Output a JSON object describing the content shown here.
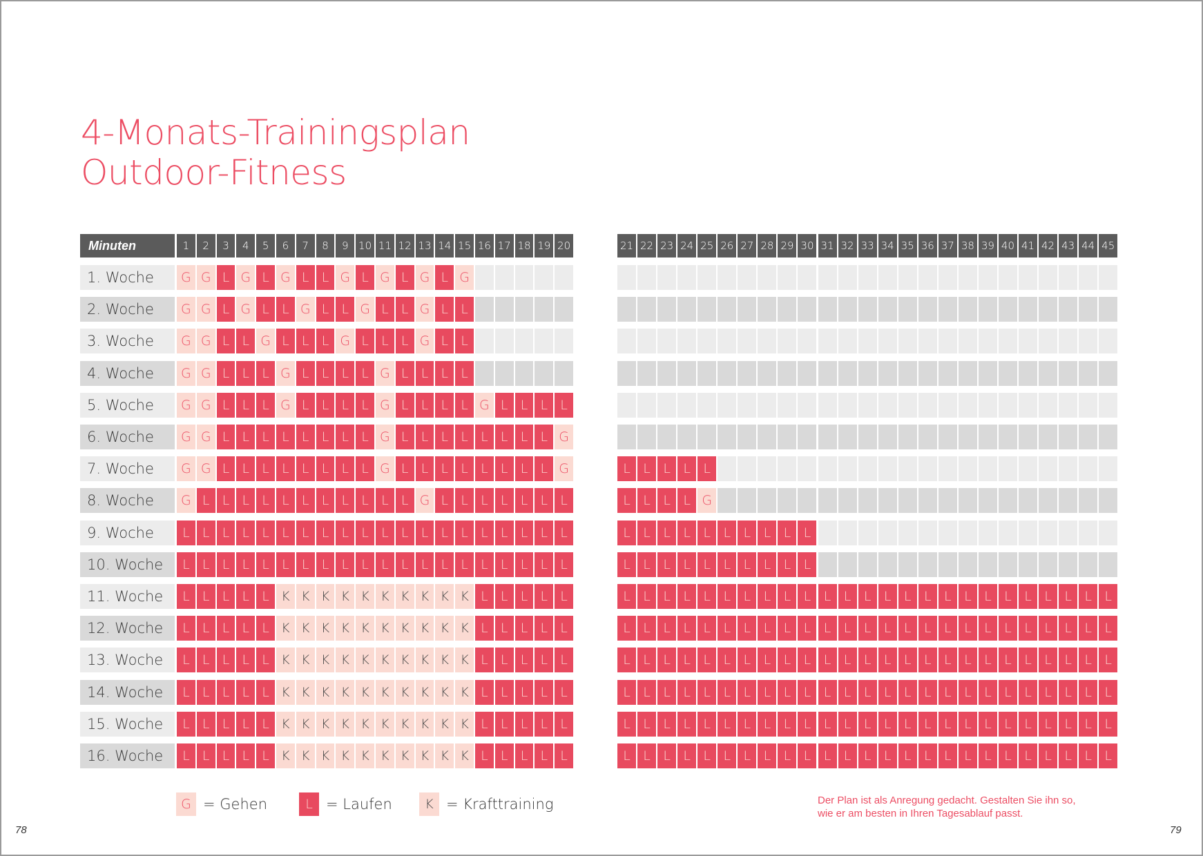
{
  "title": {
    "line1": "4-Monats-Trainingsplan",
    "line2": "Outdoor-Fitness"
  },
  "header_label": "Minuten",
  "minutes_left": [
    "1",
    "2",
    "3",
    "4",
    "5",
    "6",
    "7",
    "8",
    "9",
    "10",
    "11",
    "12",
    "13",
    "14",
    "15",
    "16",
    "17",
    "18",
    "19",
    "20"
  ],
  "minutes_right": [
    "21",
    "22",
    "23",
    "24",
    "25",
    "26",
    "27",
    "28",
    "29",
    "30",
    "31",
    "32",
    "33",
    "34",
    "35",
    "36",
    "37",
    "38",
    "39",
    "40",
    "41",
    "42",
    "43",
    "44",
    "45"
  ],
  "weeks": [
    {
      "label": "1. Woche",
      "left": "GGLGLGLLGLGLGLG-----",
      "right": "-------------------------"
    },
    {
      "label": "2. Woche",
      "left": "GGLGLLGLLGLLGLL-----",
      "right": "-------------------------"
    },
    {
      "label": "3. Woche",
      "left": "GGLLGLLLGLLLGLL-----",
      "right": "-------------------------"
    },
    {
      "label": "4. Woche",
      "left": "GGLLLGLLLLGLLLL-----",
      "right": "-------------------------"
    },
    {
      "label": "5. Woche",
      "left": "GGLLLGLLLLGLLLLGLLLL",
      "right": "-------------------------"
    },
    {
      "label": "6. Woche",
      "left": "GGLLLLLLLLGLLLLLLLLG",
      "right": "-------------------------"
    },
    {
      "label": "7. Woche",
      "left": "GGLLLLLLLLGLLLLLLLLG",
      "right": "LLLLL--------------------"
    },
    {
      "label": "8. Woche",
      "left": "GLLLLLLLLLLLGLLLLLLL",
      "right": "LLLLG--------------------"
    },
    {
      "label": "9. Woche",
      "left": "LLLLLLLLLLLLLLLLLLLL",
      "right": "LLLLLLLLLL---------------"
    },
    {
      "label": "10. Woche",
      "left": "LLLLLLLLLLLLLLLLLLLL",
      "right": "LLLLLLLLLL---------------"
    },
    {
      "label": "11. Woche",
      "left": "LLLLLKKKKKKKKKKLLLLL",
      "right": "LLLLLLLLLLLLLLLLLLLLLLLLL"
    },
    {
      "label": "12. Woche",
      "left": "LLLLLKKKKKKKKKKLLLLL",
      "right": "LLLLLLLLLLLLLLLLLLLLLLLLL"
    },
    {
      "label": "13. Woche",
      "left": "LLLLLKKKKKKKKKKLLLLL",
      "right": "LLLLLLLLLLLLLLLLLLLLLLLLL"
    },
    {
      "label": "14. Woche",
      "left": "LLLLLKKKKKKKKKKLLLLL",
      "right": "LLLLLLLLLLLLLLLLLLLLLLLLL"
    },
    {
      "label": "15. Woche",
      "left": "LLLLLKKKKKKKKKKLLLLL",
      "right": "LLLLLLLLLLLLLLLLLLLLLLLLL"
    },
    {
      "label": "16. Woche",
      "left": "LLLLLKKKKKKKKKKLLLLL",
      "right": "LLLLLLLLLLLLLLLLLLLLLLLLL"
    }
  ],
  "legend": [
    {
      "code": "G",
      "text": "= Gehen"
    },
    {
      "code": "L",
      "text": "= Laufen"
    },
    {
      "code": "K",
      "text": "= Krafttraining"
    }
  ],
  "note": {
    "line1": "Der Plan ist als Anregung gedacht. Gestalten Sie ihn so,",
    "line2": "wie er am besten in Ihren Tagesablauf passt."
  },
  "page_left": "78",
  "page_right": "79",
  "colors": {
    "run": "#e84a5f",
    "walk_bg": "#fbdad2",
    "header": "#5b5b5b",
    "accent": "#ec4d63"
  }
}
